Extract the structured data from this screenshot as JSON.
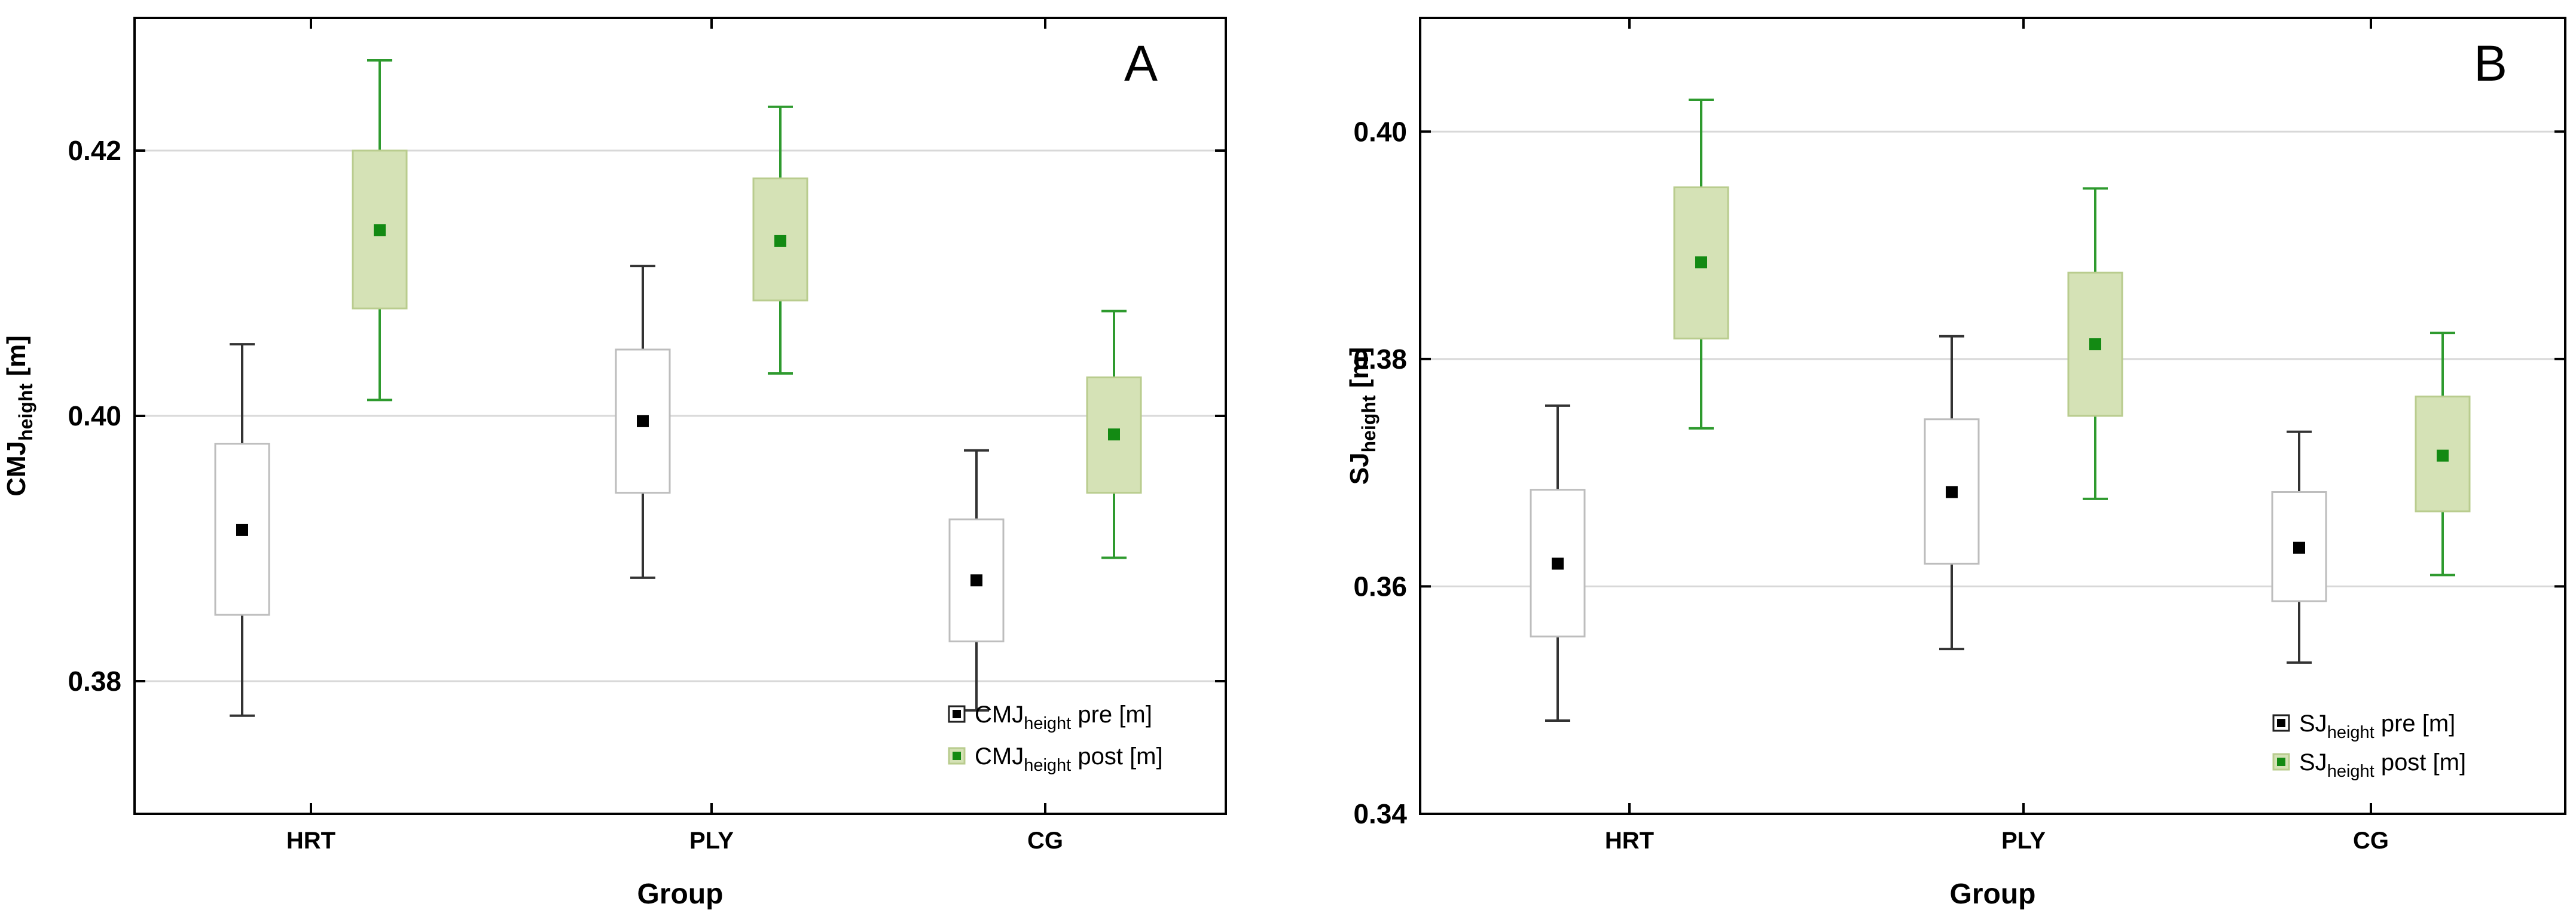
{
  "chart_data": [
    {
      "type": "box",
      "panel_label": "A",
      "xlabel": "Group",
      "ylabel_main": "CMJ",
      "ylabel_sub": "height",
      "ylabel_unit": " [m]",
      "ylim": [
        0.37,
        0.43
      ],
      "ytick_values": [
        0.38,
        0.4,
        0.42
      ],
      "ytick_labels": [
        "0.38",
        "0.40",
        "0.42"
      ],
      "grid_y": true,
      "categories": [
        "HRT",
        "PLY",
        "CG"
      ],
      "series": [
        {
          "name": "CMJ height pre [m]",
          "legend_main": "CMJ",
          "legend_sub": "height",
          "legend_rest": " pre [m]",
          "style": "pre",
          "mean": [
            0.3914,
            0.3996,
            0.3876
          ],
          "box_low": [
            0.385,
            0.3942,
            0.383
          ],
          "box_high": [
            0.3979,
            0.405,
            0.3922
          ],
          "whisker_low": [
            0.3774,
            0.3878,
            0.3778
          ],
          "whisker_high": [
            0.4054,
            0.4113,
            0.3974
          ]
        },
        {
          "name": "CMJ height post [m]",
          "legend_main": "CMJ",
          "legend_sub": "height",
          "legend_rest": " post [m]",
          "style": "post",
          "mean": [
            0.414,
            0.4132,
            0.3986
          ],
          "box_low": [
            0.4081,
            0.4087,
            0.3942
          ],
          "box_high": [
            0.42,
            0.4179,
            0.4029
          ],
          "whisker_low": [
            0.4012,
            0.4032,
            0.3893
          ],
          "whisker_high": [
            0.4268,
            0.4233,
            0.4079
          ]
        }
      ],
      "legend_position": "bottom-right"
    },
    {
      "type": "box",
      "panel_label": "B",
      "xlabel": "Group",
      "ylabel_main": "SJ",
      "ylabel_sub": "height",
      "ylabel_unit": " [m]",
      "ylim": [
        0.34,
        0.41
      ],
      "ytick_values": [
        0.34,
        0.36,
        0.38,
        0.4
      ],
      "ytick_labels": [
        "0.34",
        "0.36",
        "0.38",
        "0.40"
      ],
      "grid_y": true,
      "categories": [
        "HRT",
        "PLY",
        "CG"
      ],
      "series": [
        {
          "name": "SJ height pre [m]",
          "legend_main": "SJ",
          "legend_sub": "height",
          "legend_rest": " pre [m]",
          "style": "pre",
          "mean": [
            0.362,
            0.3683,
            0.3634
          ],
          "box_low": [
            0.3556,
            0.362,
            0.3587
          ],
          "box_high": [
            0.3685,
            0.3747,
            0.3683
          ],
          "whisker_low": [
            0.3482,
            0.3545,
            0.3533
          ],
          "whisker_high": [
            0.3759,
            0.382,
            0.3736
          ]
        },
        {
          "name": "SJ height post [m]",
          "legend_main": "SJ",
          "legend_sub": "height",
          "legend_rest": "  post [m]",
          "style": "post",
          "mean": [
            0.3885,
            0.3813,
            0.3715
          ],
          "box_low": [
            0.3818,
            0.375,
            0.3666
          ],
          "box_high": [
            0.3951,
            0.3876,
            0.3767
          ],
          "whisker_low": [
            0.3739,
            0.3677,
            0.361
          ],
          "whisker_high": [
            0.4028,
            0.395,
            0.3823
          ]
        }
      ],
      "legend_position": "bottom-right"
    }
  ],
  "colors": {
    "pre_box_fill": "#ffffff",
    "pre_box_stroke": "#bdbdbd",
    "pre_whisker": "#333333",
    "pre_mean": "#000000",
    "post_box_fill": "#d5e2b6",
    "post_box_stroke": "#b9cc8e",
    "post_whisker": "#2e9a2e",
    "post_mean": "#138a13",
    "grid": "#d8d8d8",
    "axis": "#000000",
    "text": "#000000"
  }
}
